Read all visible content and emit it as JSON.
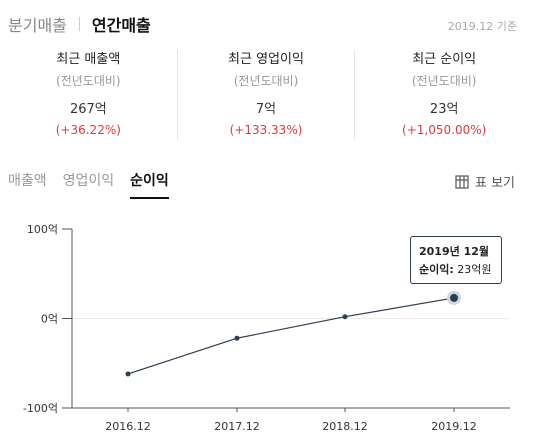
{
  "top_tabs": {
    "quarterly": "분기매출",
    "annual": "연간매출"
  },
  "basis_label": "2019.12 기준",
  "summary": [
    {
      "title": "최근 매출액",
      "sub": "(전년도대비)",
      "value": "267억",
      "change": "(+36.22%)"
    },
    {
      "title": "최근 영업이익",
      "sub": "(전년도대비)",
      "value": "7억",
      "change": "(+133.33%)"
    },
    {
      "title": "최근 순이익",
      "sub": "(전년도대비)",
      "value": "23억",
      "change": "(+1,050.00%)"
    }
  ],
  "chart_tabs": [
    "매출액",
    "영업이익",
    "순이익"
  ],
  "active_chart_tab": "순이익",
  "table_view_label": "표 보기",
  "tooltip": {
    "header": "2019년 12월",
    "key": "순이익:",
    "value": "23억원"
  },
  "colors": {
    "line": "#2c3e50",
    "positive_change": "#e03b3b"
  },
  "chart_data": {
    "type": "line",
    "categories": [
      "2016.12",
      "2017.12",
      "2018.12",
      "2019.12"
    ],
    "series": [
      {
        "values": [
          -62,
          -22,
          2,
          23
        ]
      }
    ],
    "y_ticks": [
      "100억",
      "0억",
      "-100억"
    ],
    "ylim": [
      -100,
      100
    ],
    "highlighted_index": 3
  }
}
